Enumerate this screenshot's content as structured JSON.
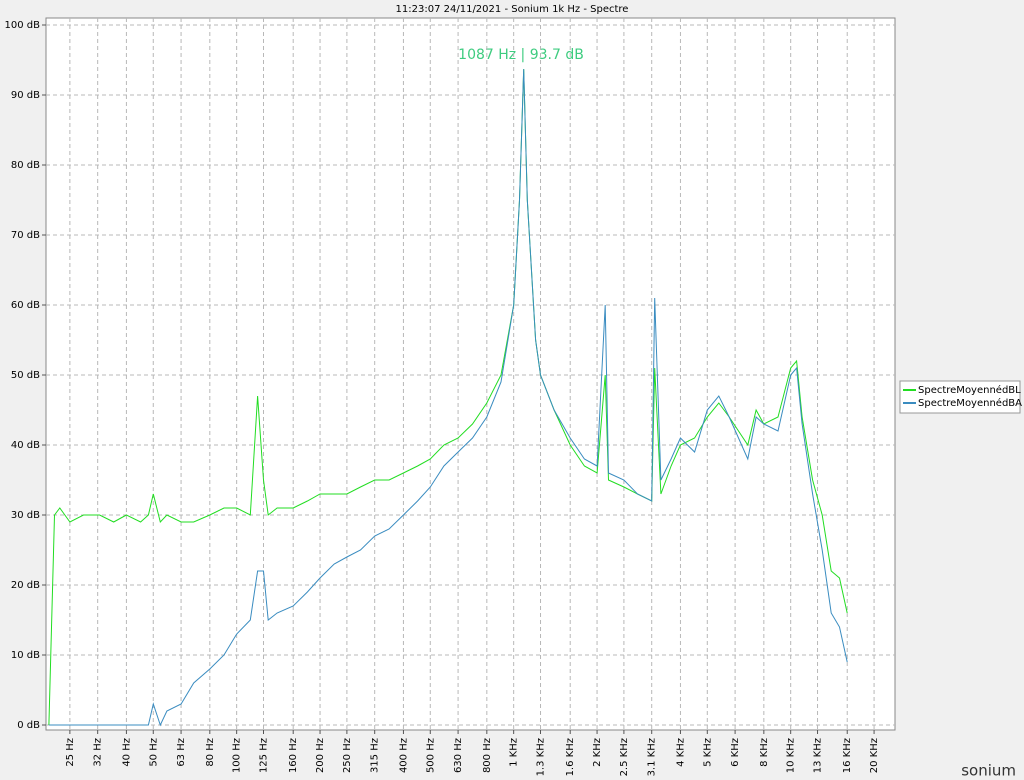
{
  "chart_data": {
    "type": "line",
    "title": "11:23:07 24/11/2021 - Sonium 1k Hz - Spectre",
    "annotation": "1087 Hz | 93.7 dB",
    "watermark": "sonium",
    "log_x": true,
    "grid": true,
    "legend": "right",
    "xlim": [
      20.5,
      23800
    ],
    "ylim": [
      0,
      100
    ],
    "xticks": [
      {
        "value": 25,
        "label": "25 Hz"
      },
      {
        "value": 31.5,
        "label": "32 Hz"
      },
      {
        "value": 40,
        "label": "40 Hz"
      },
      {
        "value": 50,
        "label": "50 Hz"
      },
      {
        "value": 63,
        "label": "63 Hz"
      },
      {
        "value": 80,
        "label": "80 Hz"
      },
      {
        "value": 100,
        "label": "100 Hz"
      },
      {
        "value": 125,
        "label": "125 Hz"
      },
      {
        "value": 160,
        "label": "160 Hz"
      },
      {
        "value": 200,
        "label": "200 Hz"
      },
      {
        "value": 250,
        "label": "250 Hz"
      },
      {
        "value": 315,
        "label": "315 Hz"
      },
      {
        "value": 400,
        "label": "400 Hz"
      },
      {
        "value": 500,
        "label": "500 Hz"
      },
      {
        "value": 630,
        "label": "630 Hz"
      },
      {
        "value": 800,
        "label": "800 Hz"
      },
      {
        "value": 1000,
        "label": "1 KHz"
      },
      {
        "value": 1250,
        "label": "1.3 KHz"
      },
      {
        "value": 1600,
        "label": "1.6 KHz"
      },
      {
        "value": 2000,
        "label": "2 KHz"
      },
      {
        "value": 2500,
        "label": "2.5 KHz"
      },
      {
        "value": 3150,
        "label": "3.1 KHz"
      },
      {
        "value": 4000,
        "label": "4 KHz"
      },
      {
        "value": 5000,
        "label": "5 KHz"
      },
      {
        "value": 6300,
        "label": "6 KHz"
      },
      {
        "value": 8000,
        "label": "8 KHz"
      },
      {
        "value": 10000,
        "label": "10 KHz"
      },
      {
        "value": 12500,
        "label": "13 KHz"
      },
      {
        "value": 16000,
        "label": "16 KHz"
      },
      {
        "value": 20000,
        "label": "20 KHz"
      }
    ],
    "yticks": [
      {
        "value": 0,
        "label": "0 dB"
      },
      {
        "value": 10,
        "label": "10 dB"
      },
      {
        "value": 20,
        "label": "20 dB"
      },
      {
        "value": 30,
        "label": "30 dB"
      },
      {
        "value": 40,
        "label": "40 dB"
      },
      {
        "value": 50,
        "label": "50 dB"
      },
      {
        "value": 60,
        "label": "60 dB"
      },
      {
        "value": 70,
        "label": "70 dB"
      },
      {
        "value": 80,
        "label": "80 dB"
      },
      {
        "value": 90,
        "label": "90 dB"
      },
      {
        "value": 100,
        "label": "100 dB"
      }
    ],
    "x": [
      21,
      22,
      23,
      25,
      28,
      32,
      36,
      40,
      45,
      48,
      50,
      53,
      56,
      63,
      70,
      80,
      90,
      100,
      112,
      119,
      125,
      130,
      140,
      160,
      180,
      200,
      225,
      250,
      280,
      315,
      355,
      400,
      450,
      500,
      560,
      630,
      710,
      800,
      900,
      1000,
      1050,
      1087,
      1120,
      1200,
      1250,
      1400,
      1600,
      1800,
      2000,
      2140,
      2200,
      2500,
      2800,
      3150,
      3230,
      3400,
      3700,
      4000,
      4500,
      5000,
      5500,
      6000,
      7000,
      7500,
      8000,
      9000,
      10000,
      10500,
      11000,
      12000,
      13000,
      14000,
      15000,
      16000
    ],
    "series": [
      {
        "name": "SpectreMoyennédBL",
        "color": "#22dd22",
        "values": [
          0,
          30,
          31,
          29,
          30,
          30,
          29,
          30,
          29,
          30,
          33,
          29,
          30,
          29,
          29,
          30,
          31,
          31,
          30,
          47,
          35,
          30,
          31,
          31,
          32,
          33,
          33,
          33,
          34,
          35,
          35,
          36,
          37,
          38,
          40,
          41,
          43,
          46,
          50,
          60,
          75,
          93.7,
          75,
          55,
          50,
          45,
          40,
          37,
          36,
          50,
          35,
          34,
          33,
          32,
          51,
          33,
          37,
          40,
          41,
          44,
          46,
          44,
          40,
          45,
          43,
          44,
          51,
          52,
          44,
          35,
          30,
          22,
          21,
          16
        ]
      },
      {
        "name": "SpectreMoyennédBA",
        "color": "#3a8cc0",
        "values": [
          0,
          0,
          0,
          0,
          0,
          0,
          0,
          0,
          0,
          0,
          3,
          0,
          2,
          3,
          6,
          8,
          10,
          13,
          15,
          22,
          22,
          15,
          16,
          17,
          19,
          21,
          23,
          24,
          25,
          27,
          28,
          30,
          32,
          34,
          37,
          39,
          41,
          44,
          49,
          60,
          75,
          93.7,
          75,
          55,
          50,
          45,
          41,
          38,
          37,
          60,
          36,
          35,
          33,
          32,
          61,
          35,
          38,
          41,
          39,
          45,
          47,
          44,
          38,
          44,
          43,
          42,
          50,
          51,
          43,
          33,
          25,
          16,
          14,
          9
        ]
      }
    ]
  }
}
